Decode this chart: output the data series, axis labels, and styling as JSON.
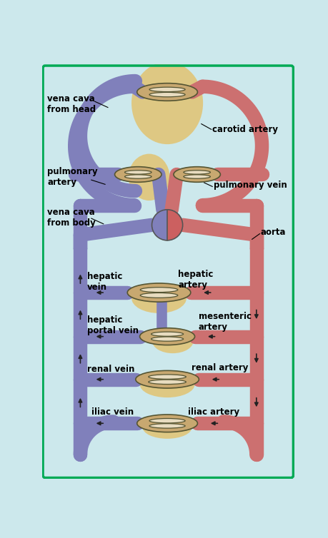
{
  "bg_color": "#cce8ec",
  "border_color": "#00aa55",
  "vein_color": "#8080bb",
  "artery_color": "#cc7070",
  "cap_outer_fill": "#c8a870",
  "cap_outer_stroke": "#555533",
  "cap_inner_fill": "#e8dcc0",
  "cap_inner_stroke": "#555533",
  "organ_fill": "#e8b84b",
  "organ_alpha": 0.65,
  "heart_left": "#8080bb",
  "heart_right": "#cc6060",
  "arrow_color": "#222222",
  "label_color": "#000000",
  "lw_vessel": 14,
  "lw_border": 2.5,
  "fs_label": 8.5,
  "labels": {
    "vena_cava_head": "vena cava\nfrom head",
    "carotid_artery": "carotid artery",
    "pulmonary_artery": "pulmonary\nartery",
    "pulmonary_vein": "pulmonary vein",
    "vena_cava_body": "vena cava\nfrom body",
    "aorta": "aorta",
    "hepatic_vein": "hepatic\nvein",
    "hepatic_artery": "hepatic\nartery",
    "hepatic_portal_vein": "hepatic\nportal vein",
    "mesenteric_artery": "mesenteric\nartery",
    "renal_vein": "renal vein",
    "renal_artery": "renal artery",
    "iliac_vein": "iliac vein",
    "iliac_artery": "iliac artery"
  }
}
